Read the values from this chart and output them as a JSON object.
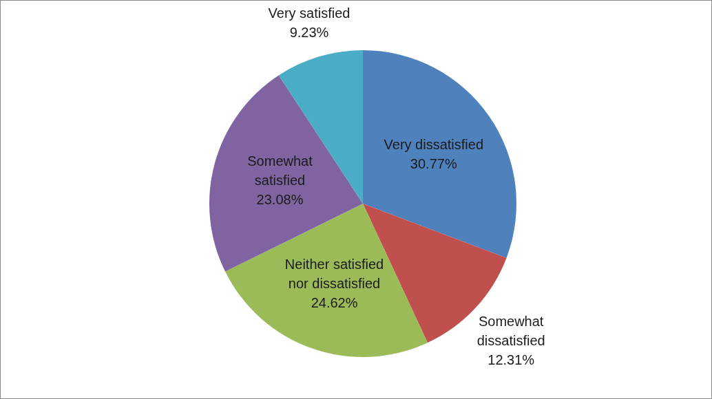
{
  "chart_data": {
    "type": "pie",
    "categories": [
      "Very dissatisfied",
      "Somewhat\ndissatisfied",
      "Neither satisfied\nnor dissatisfied",
      "Somewhat\nsatisfied",
      "Very satisfied"
    ],
    "values": [
      30.77,
      12.31,
      24.62,
      23.08,
      9.23
    ],
    "colors": [
      "#4f81bd",
      "#c0504d",
      "#9bbb59",
      "#8064a2",
      "#4bacc6"
    ],
    "value_labels": [
      "30.77%",
      "12.31%",
      "24.62%",
      "23.08%",
      "9.23%"
    ],
    "legend": false
  }
}
